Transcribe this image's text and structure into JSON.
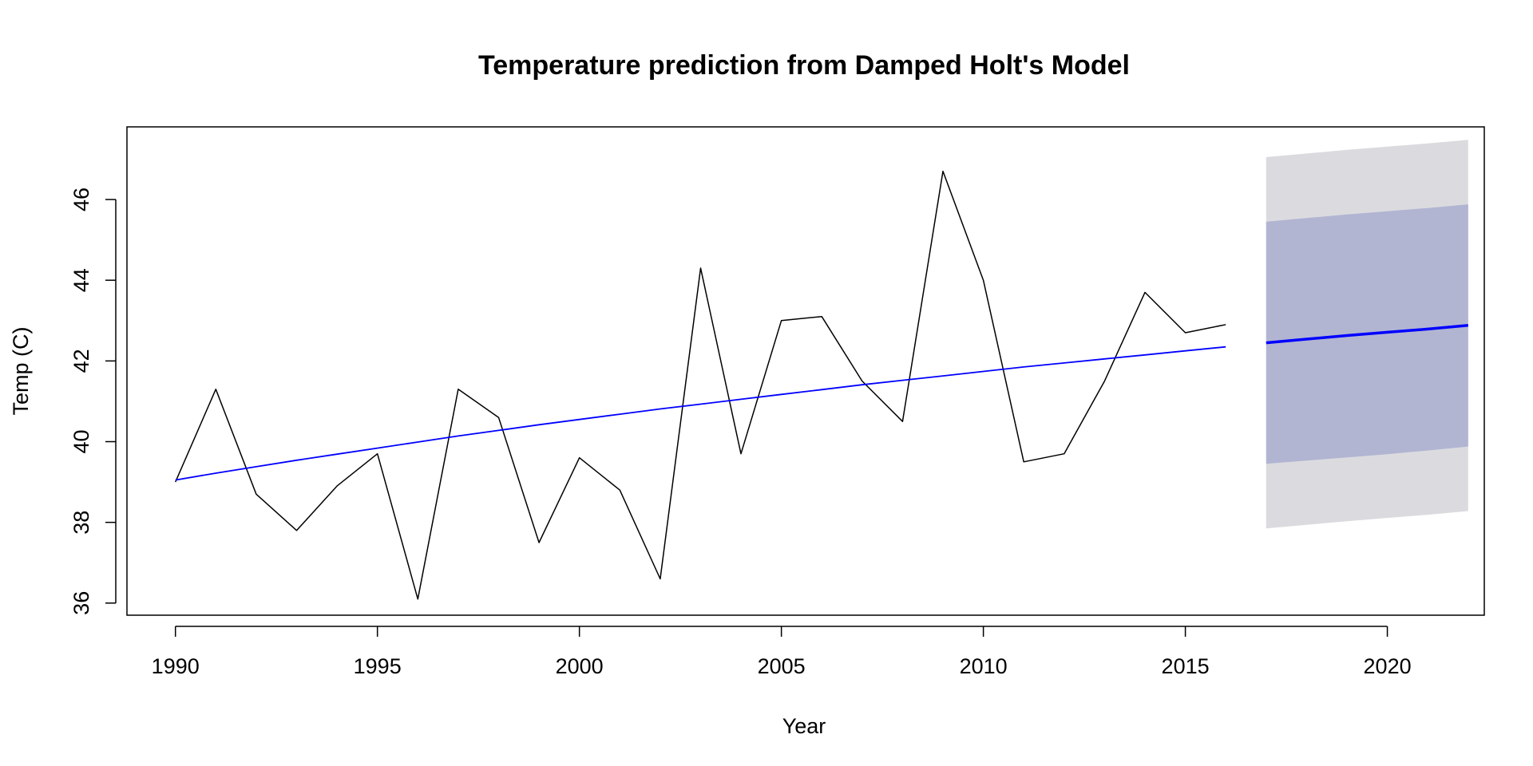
{
  "chart_data": {
    "type": "line",
    "title": "Temperature prediction from Damped Holt's Model",
    "xlabel": "Year",
    "ylabel": "Temp (C)",
    "xlim": [
      1988.8,
      2022.4
    ],
    "ylim": [
      35.7,
      47.8
    ],
    "x_ticks": [
      1990,
      1995,
      2000,
      2005,
      2010,
      2015,
      2020
    ],
    "y_ticks": [
      36,
      38,
      40,
      42,
      44,
      46
    ],
    "grid": false,
    "legend": "none",
    "series": [
      {
        "color": "#000000",
        "kind": "observed",
        "x": [
          1990,
          1991,
          1992,
          1993,
          1994,
          1995,
          1996,
          1997,
          1998,
          1999,
          2000,
          2001,
          2002,
          2003,
          2004,
          2005,
          2006,
          2007,
          2008,
          2009,
          2010,
          2011,
          2012,
          2013,
          2014,
          2015,
          2016
        ],
        "values": [
          39.0,
          41.3,
          38.7,
          37.8,
          38.9,
          39.7,
          36.1,
          41.3,
          40.6,
          37.5,
          39.6,
          38.8,
          36.6,
          44.3,
          39.7,
          43.0,
          43.1,
          41.5,
          40.5,
          46.7,
          44.0,
          39.5,
          39.7,
          41.5,
          43.7,
          42.7,
          42.9
        ]
      },
      {
        "color": "#0000ff",
        "kind": "fitted",
        "x": [
          1990,
          1991,
          1992,
          1993,
          1994,
          1995,
          1996,
          1997,
          1998,
          1999,
          2000,
          2001,
          2002,
          2003,
          2004,
          2005,
          2006,
          2007,
          2008,
          2009,
          2010,
          2011,
          2012,
          2013,
          2014,
          2015,
          2016
        ],
        "values": [
          39.05,
          39.22,
          39.38,
          39.54,
          39.69,
          39.84,
          39.99,
          40.14,
          40.28,
          40.42,
          40.55,
          40.68,
          40.81,
          40.93,
          41.05,
          41.17,
          41.29,
          41.41,
          41.52,
          41.63,
          41.74,
          41.85,
          41.95,
          42.05,
          42.15,
          42.25,
          42.35
        ]
      },
      {
        "color": "#0000ff",
        "kind": "forecast",
        "x": [
          2017,
          2018,
          2019,
          2020,
          2021,
          2022
        ],
        "values": [
          42.45,
          42.54,
          42.63,
          42.71,
          42.79,
          42.88
        ],
        "lo80": [
          39.45,
          39.53,
          39.61,
          39.69,
          39.78,
          39.88
        ],
        "hi80": [
          45.45,
          45.54,
          45.63,
          45.71,
          45.79,
          45.88
        ],
        "lo95": [
          37.85,
          37.94,
          38.03,
          38.11,
          38.19,
          38.28
        ],
        "hi95": [
          47.05,
          47.14,
          47.23,
          47.31,
          47.39,
          47.48
        ]
      }
    ],
    "colors": {
      "band95": "#dbdbdf",
      "band80": "#b1b5d2",
      "observed": "#000000",
      "fitted": "#0000ff",
      "forecast": "#0000ff"
    }
  }
}
